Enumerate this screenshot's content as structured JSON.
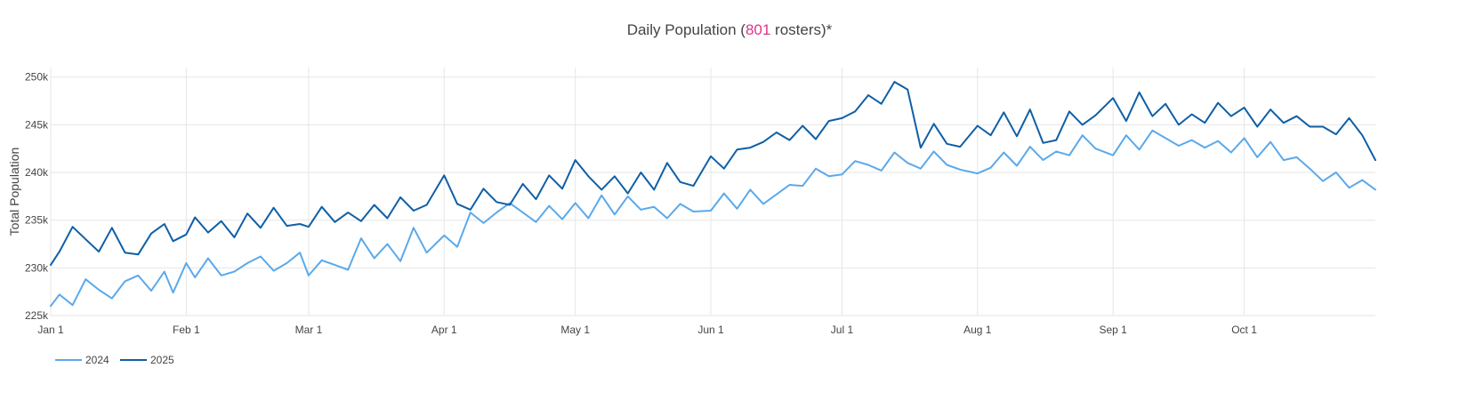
{
  "title": {
    "prefix": "Daily Population (",
    "highlight": "801",
    "suffix": " rosters)*",
    "highlight_color": "#e0338a"
  },
  "chart_data": {
    "type": "line",
    "title": "Daily Population (801 rosters)*",
    "xlabel": "",
    "ylabel": "Total Population",
    "ylim": [
      225000,
      251000
    ],
    "yticks": [
      225000,
      230000,
      235000,
      240000,
      245000,
      250000
    ],
    "ytick_labels": [
      "225k",
      "230k",
      "235k",
      "240k",
      "245k",
      "250k"
    ],
    "xlim": [
      "2025-01-01",
      "2025-10-31"
    ],
    "xticks": [
      "2025-01-01",
      "2025-02-01",
      "2025-03-01",
      "2025-04-01",
      "2025-05-01",
      "2025-06-01",
      "2025-07-01",
      "2025-08-01",
      "2025-09-01",
      "2025-10-01"
    ],
    "xtick_labels": [
      "Jan 1",
      "Feb 1",
      "Mar 1",
      "Apr 1",
      "May 1",
      "Jun 1",
      "Jul 1",
      "Aug 1",
      "Sep 1",
      "Oct 1"
    ],
    "grid": true,
    "legend_position": "bottom-left",
    "series": [
      {
        "name": "2024",
        "color": "#5aa9ec",
        "x": [
          "2025-01-01",
          "2025-01-03",
          "2025-01-06",
          "2025-01-09",
          "2025-01-12",
          "2025-01-15",
          "2025-01-18",
          "2025-01-21",
          "2025-01-24",
          "2025-01-27",
          "2025-01-29",
          "2025-02-01",
          "2025-02-03",
          "2025-02-06",
          "2025-02-09",
          "2025-02-12",
          "2025-02-15",
          "2025-02-18",
          "2025-02-21",
          "2025-02-24",
          "2025-02-27",
          "2025-03-01",
          "2025-03-04",
          "2025-03-07",
          "2025-03-10",
          "2025-03-13",
          "2025-03-16",
          "2025-03-19",
          "2025-03-22",
          "2025-03-25",
          "2025-03-28",
          "2025-04-01",
          "2025-04-04",
          "2025-04-07",
          "2025-04-10",
          "2025-04-13",
          "2025-04-16",
          "2025-04-19",
          "2025-04-22",
          "2025-04-25",
          "2025-04-28",
          "2025-05-01",
          "2025-05-04",
          "2025-05-07",
          "2025-05-10",
          "2025-05-13",
          "2025-05-16",
          "2025-05-19",
          "2025-05-22",
          "2025-05-25",
          "2025-05-28",
          "2025-06-01",
          "2025-06-04",
          "2025-06-07",
          "2025-06-10",
          "2025-06-13",
          "2025-06-16",
          "2025-06-19",
          "2025-06-22",
          "2025-06-25",
          "2025-06-28",
          "2025-07-01",
          "2025-07-04",
          "2025-07-07",
          "2025-07-10",
          "2025-07-13",
          "2025-07-16",
          "2025-07-19",
          "2025-07-22",
          "2025-07-25",
          "2025-07-28",
          "2025-08-01",
          "2025-08-04",
          "2025-08-07",
          "2025-08-10",
          "2025-08-13",
          "2025-08-16",
          "2025-08-19",
          "2025-08-22",
          "2025-08-25",
          "2025-08-28",
          "2025-09-01",
          "2025-09-04",
          "2025-09-07",
          "2025-09-10",
          "2025-09-13",
          "2025-09-16",
          "2025-09-19",
          "2025-09-22",
          "2025-09-25",
          "2025-09-28",
          "2025-10-01",
          "2025-10-04",
          "2025-10-07",
          "2025-10-10",
          "2025-10-13",
          "2025-10-16",
          "2025-10-19",
          "2025-10-22",
          "2025-10-25",
          "2025-10-28",
          "2025-10-31"
        ],
        "values": [
          226000,
          227200,
          226100,
          228800,
          227700,
          226800,
          228600,
          229200,
          227600,
          229600,
          227400,
          230500,
          229000,
          231000,
          229200,
          229600,
          230500,
          231200,
          229700,
          230500,
          231600,
          229200,
          230800,
          230300,
          229800,
          233100,
          231000,
          232500,
          230700,
          234200,
          231600,
          233400,
          232200,
          235800,
          234700,
          235800,
          236800,
          235800,
          234800,
          236500,
          235100,
          236800,
          235200,
          237600,
          235600,
          237500,
          236100,
          236400,
          235200,
          236700,
          235900,
          236000,
          237800,
          236200,
          238200,
          236700,
          237700,
          238700,
          238600,
          240400,
          239600,
          239800,
          241200,
          240800,
          240200,
          242100,
          241000,
          240400,
          242200,
          240800,
          240300,
          239900,
          240500,
          242100,
          240700,
          242700,
          241300,
          242200,
          241800,
          243900,
          242500,
          241800,
          243900,
          242400,
          244400,
          243600,
          242800,
          243400,
          242600,
          243300,
          242100,
          243600,
          241600,
          243200,
          241300,
          241600,
          240400,
          239100,
          240000,
          238400,
          239200,
          238200
        ]
      },
      {
        "name": "2025",
        "color": "#0f5fa6",
        "x": [
          "2025-01-01",
          "2025-01-03",
          "2025-01-06",
          "2025-01-09",
          "2025-01-12",
          "2025-01-15",
          "2025-01-18",
          "2025-01-21",
          "2025-01-24",
          "2025-01-27",
          "2025-01-29",
          "2025-02-01",
          "2025-02-03",
          "2025-02-06",
          "2025-02-09",
          "2025-02-12",
          "2025-02-15",
          "2025-02-18",
          "2025-02-21",
          "2025-02-24",
          "2025-02-27",
          "2025-03-01",
          "2025-03-04",
          "2025-03-07",
          "2025-03-10",
          "2025-03-13",
          "2025-03-16",
          "2025-03-19",
          "2025-03-22",
          "2025-03-25",
          "2025-03-28",
          "2025-04-01",
          "2025-04-04",
          "2025-04-07",
          "2025-04-10",
          "2025-04-13",
          "2025-04-16",
          "2025-04-19",
          "2025-04-22",
          "2025-04-25",
          "2025-04-28",
          "2025-05-01",
          "2025-05-04",
          "2025-05-07",
          "2025-05-10",
          "2025-05-13",
          "2025-05-16",
          "2025-05-19",
          "2025-05-22",
          "2025-05-25",
          "2025-05-28",
          "2025-06-01",
          "2025-06-04",
          "2025-06-07",
          "2025-06-10",
          "2025-06-13",
          "2025-06-16",
          "2025-06-19",
          "2025-06-22",
          "2025-06-25",
          "2025-06-28",
          "2025-07-01",
          "2025-07-04",
          "2025-07-07",
          "2025-07-10",
          "2025-07-13",
          "2025-07-16",
          "2025-07-19",
          "2025-07-22",
          "2025-07-25",
          "2025-07-28",
          "2025-08-01",
          "2025-08-04",
          "2025-08-07",
          "2025-08-10",
          "2025-08-13",
          "2025-08-16",
          "2025-08-19",
          "2025-08-22",
          "2025-08-25",
          "2025-08-28",
          "2025-09-01",
          "2025-09-04",
          "2025-09-07",
          "2025-09-10",
          "2025-09-13",
          "2025-09-16",
          "2025-09-19",
          "2025-09-22",
          "2025-09-25",
          "2025-09-28",
          "2025-10-01",
          "2025-10-04",
          "2025-10-07",
          "2025-10-10",
          "2025-10-13",
          "2025-10-16",
          "2025-10-19",
          "2025-10-22",
          "2025-10-25",
          "2025-10-28",
          "2025-10-31"
        ],
        "values": [
          230300,
          231700,
          234300,
          233000,
          231700,
          234200,
          231600,
          231400,
          233600,
          234600,
          232800,
          233500,
          235300,
          233700,
          234900,
          233200,
          235700,
          234200,
          236300,
          234400,
          234600,
          234300,
          236400,
          234800,
          235800,
          234900,
          236600,
          235200,
          237400,
          236000,
          236600,
          239700,
          236700,
          236100,
          238300,
          236900,
          236600,
          238800,
          237200,
          239700,
          238300,
          241300,
          239600,
          238200,
          239600,
          237800,
          240000,
          238200,
          241000,
          239000,
          238600,
          241700,
          240400,
          242400,
          242600,
          243200,
          244200,
          243400,
          244900,
          243500,
          245400,
          245700,
          246400,
          248100,
          247200,
          249500,
          248700,
          242600,
          245100,
          243000,
          242700,
          244900,
          243900,
          246300,
          243800,
          246600,
          243100,
          243400,
          246400,
          245000,
          246000,
          247800,
          245400,
          248400,
          245900,
          247200,
          245000,
          246100,
          245200,
          247300,
          245900,
          246800,
          244800,
          246600,
          245200,
          245900,
          244800,
          244800,
          244000,
          245700,
          243900,
          241300
        ]
      }
    ]
  }
}
